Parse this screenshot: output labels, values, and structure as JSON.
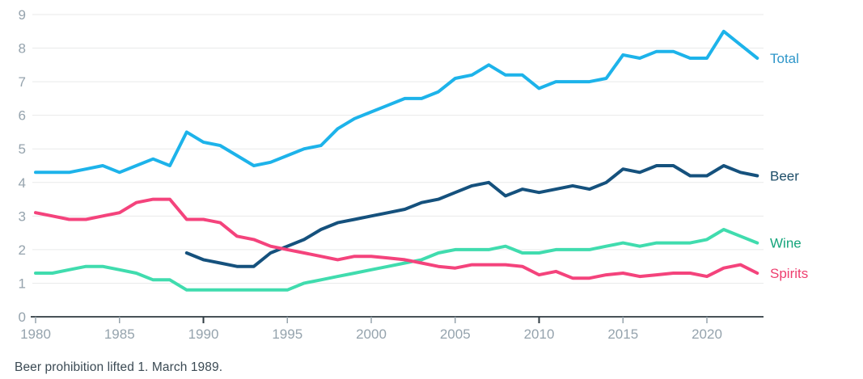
{
  "footnote": "Beer prohibition lifted 1. March 1989.",
  "colors": {
    "background": "#ffffff",
    "gridline": "#e9eaea",
    "axis_line": "#2e3a40",
    "tick_normal": "#97a4ad",
    "tick_emphasized": "#2e3a40",
    "axis_label_text": "#95a3ad",
    "footnote_text": "#3b4a54"
  },
  "chart_data": {
    "type": "line",
    "title": "",
    "xlabel": "",
    "ylabel": "",
    "grid": "horizontal",
    "legend_position": "right-inline-labels",
    "ylim": [
      0,
      9
    ],
    "yticks": [
      0,
      1,
      2,
      3,
      4,
      5,
      6,
      7,
      8,
      9
    ],
    "xticks": [
      1980,
      1985,
      1990,
      1995,
      2000,
      2005,
      2010,
      2015,
      2020
    ],
    "xticks_emphasized": [
      1990,
      2010
    ],
    "x": [
      1980,
      1981,
      1982,
      1983,
      1984,
      1985,
      1986,
      1987,
      1988,
      1989,
      1990,
      1991,
      1992,
      1993,
      1994,
      1995,
      1996,
      1997,
      1998,
      1999,
      2000,
      2001,
      2002,
      2003,
      2004,
      2005,
      2006,
      2007,
      2008,
      2009,
      2010,
      2011,
      2012,
      2013,
      2014,
      2015,
      2016,
      2017,
      2018,
      2019,
      2020,
      2021,
      2022,
      2023
    ],
    "series": [
      {
        "name": "Total",
        "color": "#1db3ea",
        "label_color": "#2e96c9",
        "values": [
          4.3,
          4.3,
          4.3,
          4.4,
          4.5,
          4.3,
          4.5,
          4.7,
          4.5,
          5.5,
          5.2,
          5.1,
          4.8,
          4.5,
          4.6,
          4.8,
          5.0,
          5.1,
          5.6,
          5.9,
          6.1,
          6.3,
          6.5,
          6.5,
          6.7,
          7.1,
          7.2,
          7.5,
          7.2,
          7.2,
          6.8,
          7.0,
          7.0,
          7.0,
          7.1,
          7.8,
          7.7,
          7.9,
          7.9,
          7.7,
          7.7,
          8.5,
          8.1,
          7.7
        ]
      },
      {
        "name": "Beer",
        "color": "#15517d",
        "label_color": "#1d4d68",
        "values": [
          null,
          null,
          null,
          null,
          null,
          null,
          null,
          null,
          null,
          1.9,
          1.7,
          1.6,
          1.5,
          1.5,
          1.9,
          2.1,
          2.3,
          2.6,
          2.8,
          2.9,
          3.0,
          3.1,
          3.2,
          3.4,
          3.5,
          3.7,
          3.9,
          4.0,
          3.6,
          3.8,
          3.7,
          3.8,
          3.9,
          3.8,
          4.0,
          4.4,
          4.3,
          4.5,
          4.5,
          4.2,
          4.2,
          4.5,
          4.3,
          4.2
        ]
      },
      {
        "name": "Wine",
        "color": "#40dcae",
        "label_color": "#15a57c",
        "values": [
          1.3,
          1.3,
          1.4,
          1.5,
          1.5,
          1.4,
          1.3,
          1.1,
          1.1,
          0.8,
          0.8,
          0.8,
          0.8,
          0.8,
          0.8,
          0.8,
          1.0,
          1.1,
          1.2,
          1.3,
          1.4,
          1.5,
          1.6,
          1.7,
          1.9,
          2.0,
          2.0,
          2.0,
          2.1,
          1.9,
          1.9,
          2.0,
          2.0,
          2.0,
          2.1,
          2.2,
          2.1,
          2.2,
          2.2,
          2.2,
          2.3,
          2.6,
          2.4,
          2.2
        ]
      },
      {
        "name": "Spirits",
        "color": "#f4437c",
        "label_color": "#ee3e6f",
        "values": [
          3.1,
          3.0,
          2.9,
          2.9,
          3.0,
          3.1,
          3.4,
          3.5,
          3.5,
          2.9,
          2.9,
          2.8,
          2.4,
          2.3,
          2.1,
          2.0,
          1.9,
          1.8,
          1.7,
          1.8,
          1.8,
          1.75,
          1.7,
          1.6,
          1.5,
          1.45,
          1.55,
          1.55,
          1.55,
          1.5,
          1.25,
          1.35,
          1.15,
          1.15,
          1.25,
          1.3,
          1.2,
          1.25,
          1.3,
          1.3,
          1.2,
          1.45,
          1.55,
          1.3
        ]
      }
    ]
  }
}
